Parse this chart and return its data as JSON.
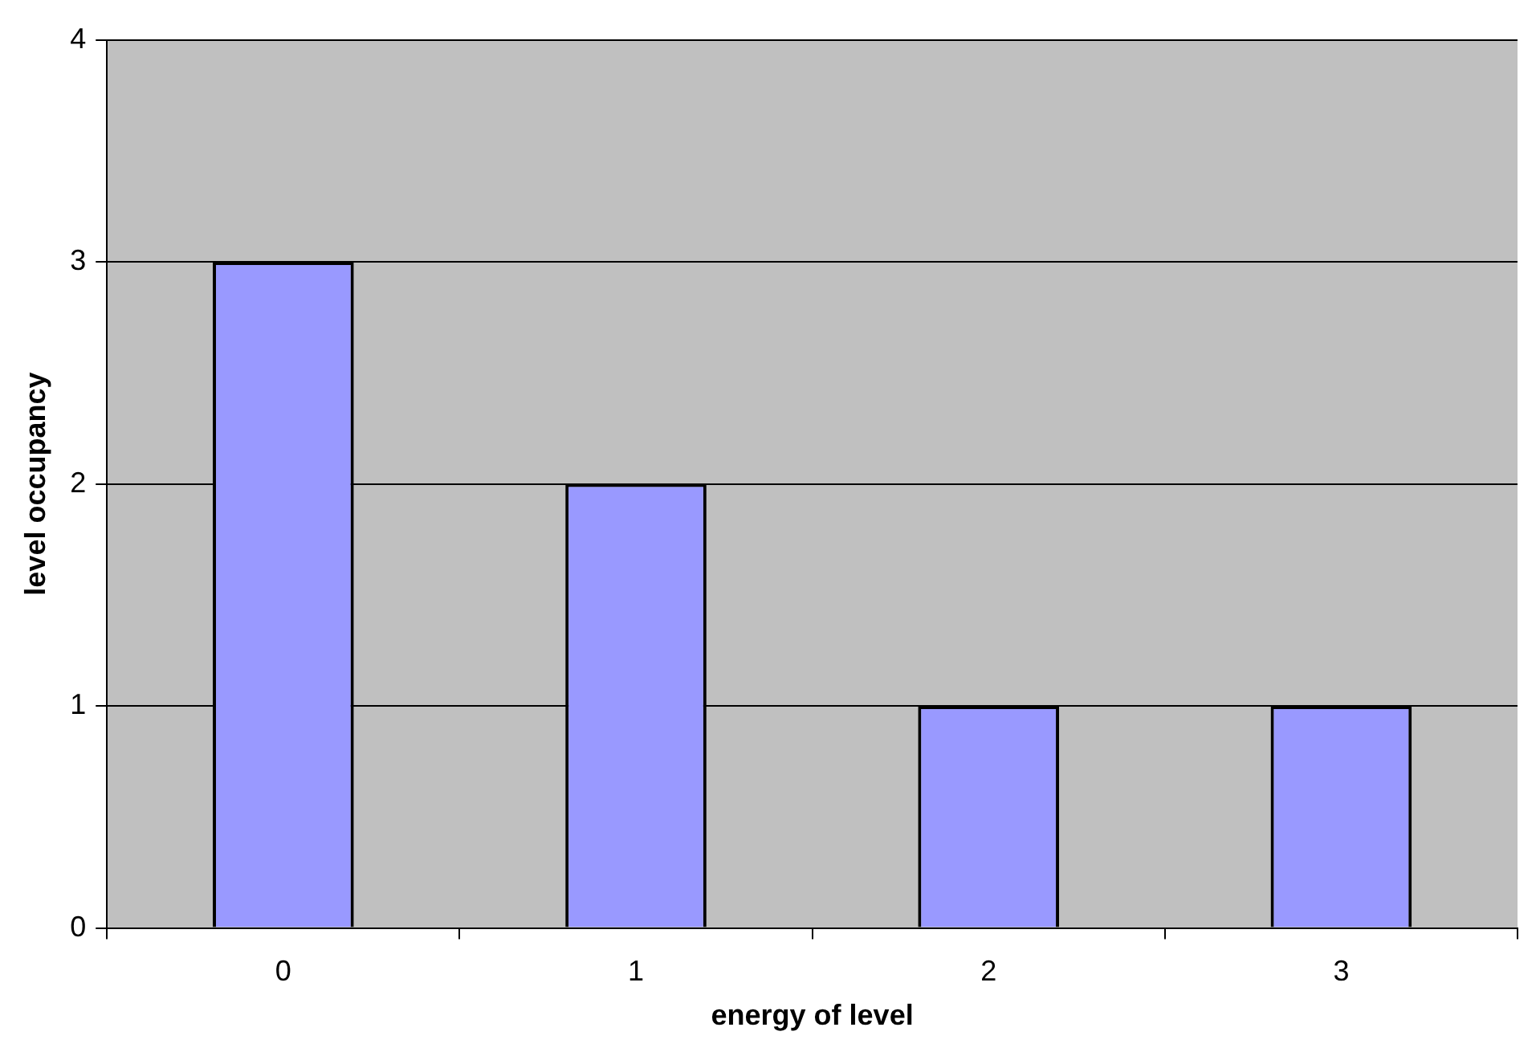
{
  "chart_data": {
    "type": "bar",
    "xlabel": "energy of level",
    "ylabel": "level occupancy",
    "categories": [
      "0",
      "1",
      "2",
      "3"
    ],
    "values": [
      3,
      2,
      1,
      1
    ],
    "color": "#9999ff",
    "ylim": [
      0,
      4
    ],
    "yticks": [
      0,
      1,
      2,
      3,
      4
    ],
    "grid": "y",
    "legend": false
  }
}
